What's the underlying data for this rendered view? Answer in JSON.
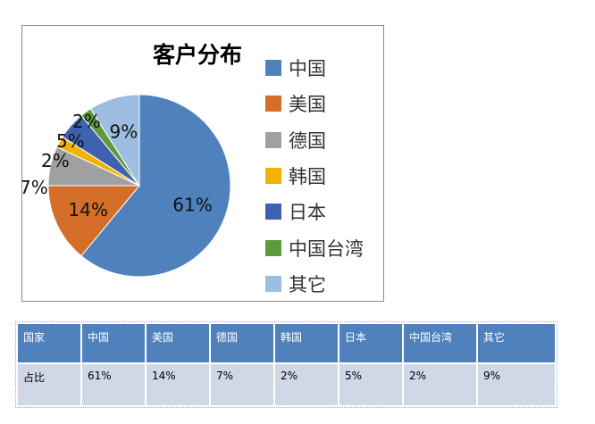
{
  "chart_data": {
    "type": "pie",
    "title": "客户分布",
    "categories": [
      "中国",
      "美国",
      "德国",
      "韩国",
      "日本",
      "中国台湾",
      "其它"
    ],
    "values": [
      61,
      14,
      7,
      2,
      5,
      2,
      9
    ],
    "data_labels": [
      "61%",
      "14%",
      "7%",
      "2%",
      "5%",
      "2%",
      "9%"
    ],
    "colors": [
      "#4f81bd",
      "#d46e28",
      "#a0a0a0",
      "#f0b400",
      "#3f62b0",
      "#5d9a3e",
      "#9dbde1"
    ],
    "legend_position": "right"
  },
  "table": {
    "header": [
      "国家",
      "中国",
      "美国",
      "德国",
      "韩国",
      "日本",
      "中国台湾",
      "其它"
    ],
    "row": [
      "占比",
      "61%",
      "14%",
      "7%",
      "2%",
      "5%",
      "2%",
      "9%"
    ]
  }
}
